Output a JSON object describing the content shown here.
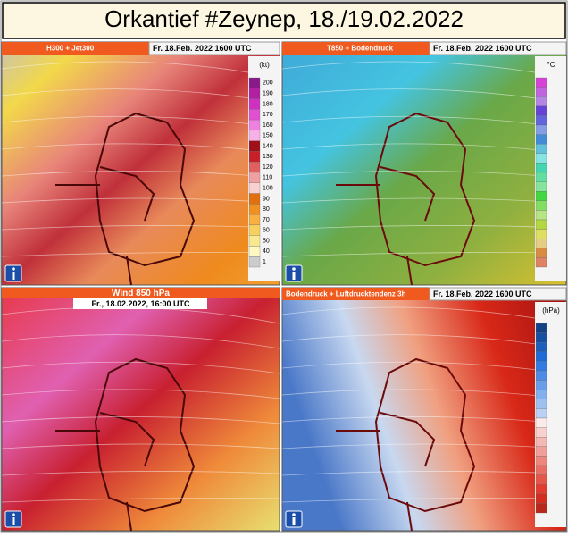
{
  "header": {
    "title": "Orkantief #Zeynep,  18./19.02.2022"
  },
  "panels": [
    {
      "label": "H300 + Jet300",
      "time": "Fr. 18.Feb. 2022 1600 UTC",
      "unit": "(kt)",
      "scale": [
        200,
        190,
        180,
        170,
        160,
        150,
        140,
        130,
        120,
        110,
        100,
        90,
        80,
        70,
        60,
        50,
        40,
        1
      ]
    },
    {
      "label": "T850 + Bodendruck",
      "time": "Fr. 18.Feb. 2022 1600 UTC",
      "unit": "°C"
    },
    {
      "label": "Wind 850 hPa",
      "time": "Fr., 18.02.2022, 16:00 UTC"
    },
    {
      "label": "Bodendruck + Luftdrucktendenz 3h",
      "time": "Fr. 18.Feb. 2022 1600 UTC",
      "unit": "(hPa)"
    }
  ]
}
